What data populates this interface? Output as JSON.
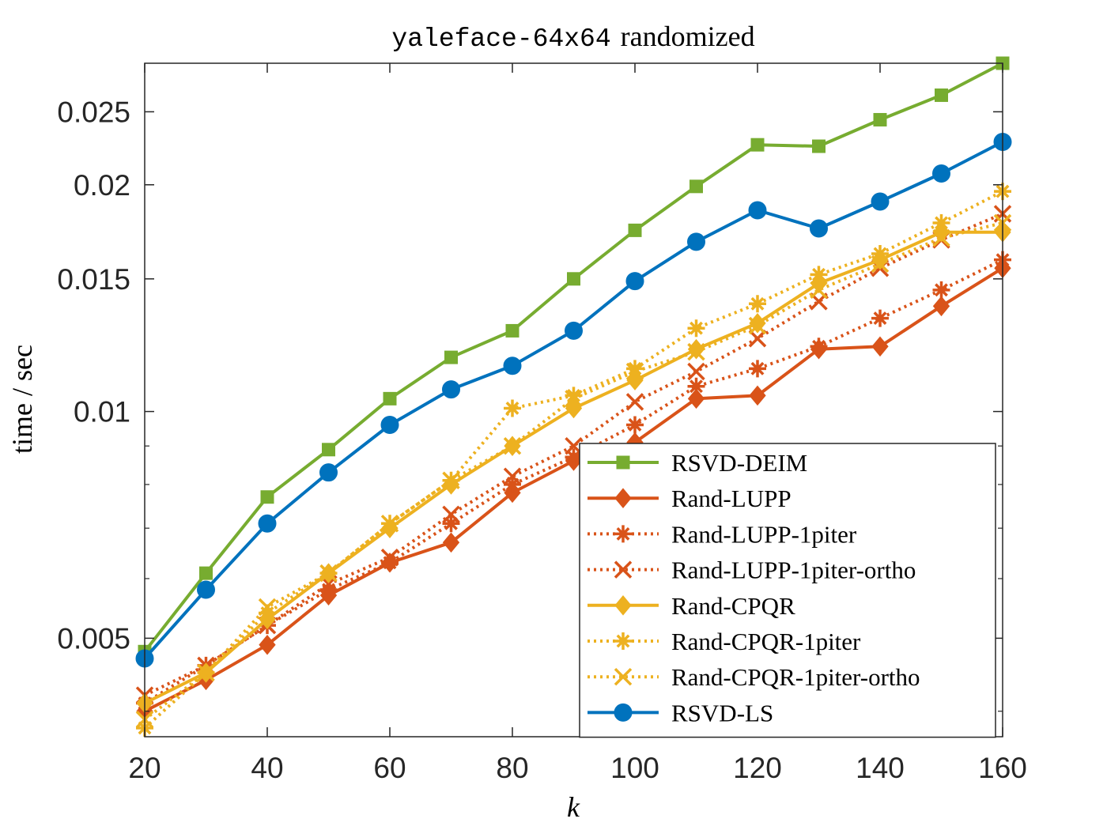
{
  "chart_data": {
    "type": "line",
    "title_mono": "yaleface-64x64",
    "title_rest": "randomized",
    "xlabel": "k",
    "ylabel": "time / sec",
    "y_scale": "log",
    "xlim": [
      20,
      160
    ],
    "ylim": [
      0.0037,
      0.029
    ],
    "x_ticks": [
      20,
      40,
      60,
      80,
      100,
      120,
      140,
      160
    ],
    "y_ticks": [
      0.005,
      0.01,
      0.015,
      0.02,
      0.025
    ],
    "y_tick_labels": [
      "0.005",
      "0.01",
      "0.015",
      "0.02",
      "0.025"
    ],
    "grid": false,
    "legend_position": "bottom-right",
    "x": [
      20,
      30,
      40,
      50,
      60,
      70,
      80,
      90,
      100,
      110,
      120,
      130,
      140,
      150,
      160
    ],
    "series": [
      {
        "name": "RSVD-DEIM",
        "color": "#77AC30",
        "dash": "solid",
        "marker": "square",
        "values": [
          0.0048,
          0.0061,
          0.0077,
          0.0089,
          0.0104,
          0.0118,
          0.0128,
          0.015,
          0.0174,
          0.0199,
          0.0226,
          0.0225,
          0.0244,
          0.0263,
          0.029
        ]
      },
      {
        "name": "Rand-LUPP",
        "color": "#D95319",
        "dash": "solid",
        "marker": "diamond",
        "values": [
          0.004,
          0.0044,
          0.0049,
          0.0057,
          0.0063,
          0.0067,
          0.0078,
          0.0086,
          0.0091,
          0.0104,
          0.0105,
          0.0121,
          0.0122,
          0.0138,
          0.0155
        ]
      },
      {
        "name": "Rand-LUPP-1piter",
        "color": "#D95319",
        "dash": "dotted",
        "marker": "asterisk",
        "values": [
          0.0041,
          0.0046,
          0.0052,
          0.0058,
          0.0063,
          0.0071,
          0.008,
          0.0087,
          0.0096,
          0.0108,
          0.0114,
          0.0122,
          0.0133,
          0.0145,
          0.0159
        ]
      },
      {
        "name": "Rand-LUPP-1piter-ortho",
        "color": "#D95319",
        "dash": "dotted",
        "marker": "x",
        "values": [
          0.0042,
          0.0046,
          0.0052,
          0.0059,
          0.0064,
          0.0073,
          0.0082,
          0.009,
          0.0103,
          0.0113,
          0.0125,
          0.014,
          0.0155,
          0.0169,
          0.0183
        ]
      },
      {
        "name": "Rand-CPQR",
        "color": "#EDB120",
        "dash": "solid",
        "marker": "diamond",
        "values": [
          0.0041,
          0.0045,
          0.0053,
          0.0061,
          0.007,
          0.008,
          0.009,
          0.0101,
          0.011,
          0.0121,
          0.0131,
          0.0148,
          0.0159,
          0.0173,
          0.0173
        ]
      },
      {
        "name": "Rand-CPQR-1piter",
        "color": "#EDB120",
        "dash": "dotted",
        "marker": "asterisk",
        "values": [
          0.0038,
          0.0045,
          0.0054,
          0.0061,
          0.0071,
          0.0081,
          0.0101,
          0.0105,
          0.0114,
          0.0129,
          0.0139,
          0.0152,
          0.0162,
          0.0178,
          0.0196
        ]
      },
      {
        "name": "Rand-CPQR-1piter-ortho",
        "color": "#EDB120",
        "dash": "dotted",
        "marker": "x",
        "values": [
          0.0039,
          0.0045,
          0.0055,
          0.0061,
          0.0071,
          0.0081,
          0.009,
          0.0104,
          0.0113,
          0.012,
          0.013,
          0.0145,
          0.0157,
          0.017,
          0.0178
        ]
      },
      {
        "name": "RSVD-LS",
        "color": "#0072BD",
        "dash": "solid",
        "marker": "circle",
        "values": [
          0.0047,
          0.0058,
          0.0071,
          0.0083,
          0.0096,
          0.0107,
          0.0115,
          0.0128,
          0.0149,
          0.0168,
          0.0185,
          0.0175,
          0.019,
          0.0207,
          0.0228
        ]
      }
    ]
  }
}
